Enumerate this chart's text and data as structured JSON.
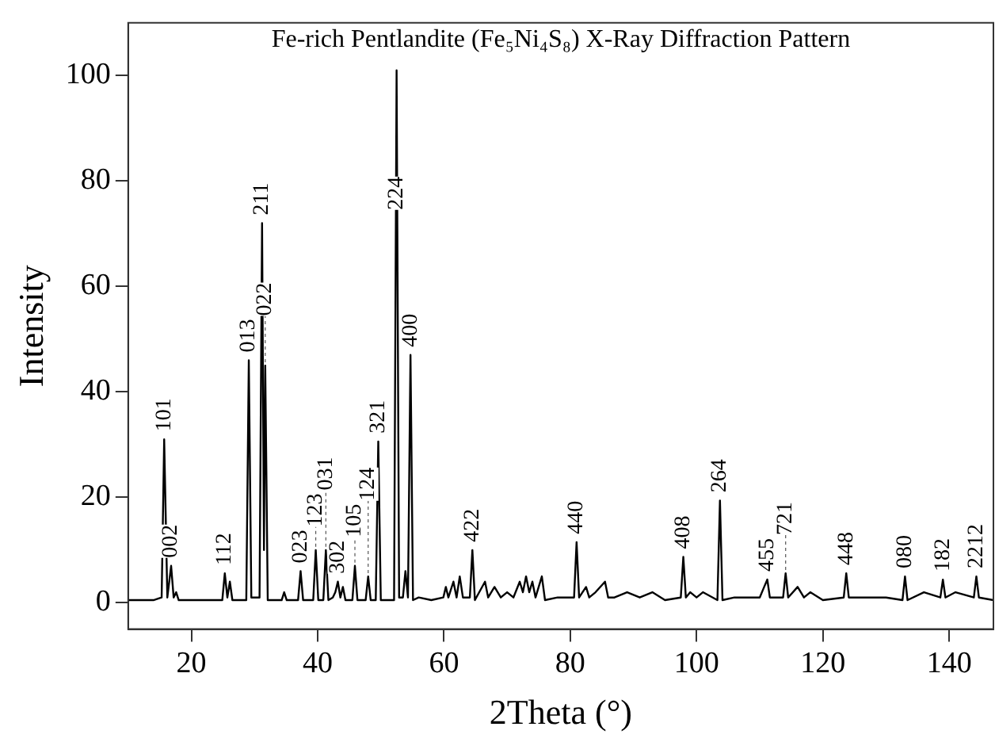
{
  "chart_data": {
    "type": "line",
    "title": "Fe-rich Pentlandite (Fe₅Ni₄S₈) X-Ray Diffraction Pattern",
    "xlabel": "2Theta (°)",
    "ylabel": "Intensity",
    "xlim": [
      10,
      147
    ],
    "xticks": [
      20,
      40,
      60,
      80,
      100,
      120,
      140
    ],
    "ylim": [
      -5,
      110
    ],
    "yticks": [
      0,
      20,
      40,
      60,
      80,
      100
    ],
    "grid": false,
    "legend": false,
    "marker": "none",
    "line_style": "solid",
    "series": [
      {
        "color": "#000000",
        "x": [
          10,
          14,
          15.3,
          15.7,
          16.2,
          16.8,
          17.2,
          17.6,
          18,
          22,
          24.9,
          25.3,
          25.7,
          26.1,
          26.5,
          28.7,
          29.1,
          29.5,
          30.8,
          31.2,
          31.5,
          31.7,
          32.1,
          34.3,
          34.7,
          35.1,
          36.9,
          37.3,
          37.7,
          39.3,
          39.7,
          40.1,
          40.9,
          41.3,
          41.7,
          42.4,
          42.8,
          43.2,
          43.6,
          44,
          44.4,
          45.5,
          45.9,
          46.3,
          47.6,
          48,
          48.4,
          49.2,
          49.6,
          50,
          52.1,
          52.5,
          52.9,
          53.5,
          53.9,
          54.3,
          54.7,
          55.1,
          56,
          58,
          59.9,
          60.3,
          60.7,
          61.5,
          62,
          62.5,
          63,
          64.1,
          64.5,
          64.9,
          66.5,
          67,
          68,
          69,
          70,
          71,
          72,
          72.5,
          73,
          73.5,
          74,
          74.5,
          75.5,
          76,
          78,
          80.6,
          81,
          81.4,
          82.5,
          83,
          84,
          85.5,
          86,
          87,
          89,
          91,
          93,
          95,
          97.5,
          97.9,
          98.3,
          99,
          100,
          101,
          103.3,
          103.7,
          104.1,
          106,
          110,
          110.7,
          111.2,
          111.6,
          113.7,
          114.1,
          114.5,
          116,
          117,
          118,
          120,
          123.3,
          123.7,
          124.1,
          127,
          130,
          132.6,
          133,
          133.4,
          136,
          138.6,
          139,
          139.4,
          141,
          143.9,
          144.3,
          144.7,
          147
        ],
        "values": [
          0.5,
          0.5,
          1,
          31,
          1,
          7,
          1,
          2,
          0.5,
          0.5,
          0.5,
          5.6,
          1,
          4,
          0.5,
          0.5,
          46,
          1,
          1,
          72,
          10,
          45,
          0.5,
          0.5,
          2,
          0.5,
          0.5,
          6,
          0.5,
          0.5,
          10,
          0.5,
          0.5,
          10,
          0.5,
          1,
          2,
          4,
          1,
          3,
          0.5,
          0.5,
          7,
          0.5,
          0.5,
          5,
          0.5,
          0.5,
          30.6,
          0.5,
          0.5,
          101,
          1,
          1,
          6,
          1,
          47,
          0.5,
          1,
          0.5,
          1,
          3,
          1,
          4,
          1,
          5,
          1,
          1,
          10,
          0.5,
          4,
          1,
          3,
          1,
          2,
          1,
          4,
          2,
          5,
          2,
          4,
          1,
          5,
          0.5,
          1,
          1,
          11.5,
          1,
          3,
          1,
          2,
          4,
          1,
          1,
          2,
          1,
          2,
          0.5,
          1,
          8.7,
          1,
          2,
          1,
          2,
          0.5,
          19.4,
          0.5,
          1,
          1,
          3,
          4.4,
          1,
          1,
          5.6,
          1,
          3,
          1,
          2,
          0.5,
          1,
          5.6,
          1,
          1,
          1,
          0.5,
          5,
          0.5,
          2,
          1,
          4.4,
          1,
          2,
          1,
          5,
          1,
          0.5
        ]
      }
    ],
    "annotations": [
      {
        "text": "101",
        "x": 15.7,
        "y": 31
      },
      {
        "text": "002",
        "x": 16.8,
        "y": 7
      },
      {
        "text": "112",
        "x": 25.3,
        "y": 5.6
      },
      {
        "text": "013",
        "x": 29.1,
        "y": 46
      },
      {
        "text": "211",
        "x": 31.2,
        "y": 72
      },
      {
        "text": "022",
        "x": 31.7,
        "y": 45
      },
      {
        "text": "023",
        "x": 37.3,
        "y": 6
      },
      {
        "text": "123",
        "x": 39.7,
        "y": 10
      },
      {
        "text": "031",
        "x": 41.3,
        "y": 10
      },
      {
        "text": "302",
        "x": 43.2,
        "y": 4
      },
      {
        "text": "105",
        "x": 45.9,
        "y": 7
      },
      {
        "text": "124",
        "x": 48,
        "y": 5
      },
      {
        "text": "321",
        "x": 49.6,
        "y": 30.6
      },
      {
        "text": "224",
        "x": 52.5,
        "y": 73
      },
      {
        "text": "400",
        "x": 54.7,
        "y": 47
      },
      {
        "text": "422",
        "x": 64.5,
        "y": 10
      },
      {
        "text": "440",
        "x": 81,
        "y": 11.5
      },
      {
        "text": "408",
        "x": 97.9,
        "y": 8.7
      },
      {
        "text": "264",
        "x": 103.7,
        "y": 19.4
      },
      {
        "text": "455",
        "x": 111.2,
        "y": 4.4
      },
      {
        "text": "721",
        "x": 114.1,
        "y": 5.6
      },
      {
        "text": "448",
        "x": 123.7,
        "y": 5.6
      },
      {
        "text": "080",
        "x": 133,
        "y": 5
      },
      {
        "text": "182",
        "x": 139,
        "y": 4.4
      },
      {
        "text": "2212",
        "x": 144.3,
        "y": 5
      }
    ]
  }
}
